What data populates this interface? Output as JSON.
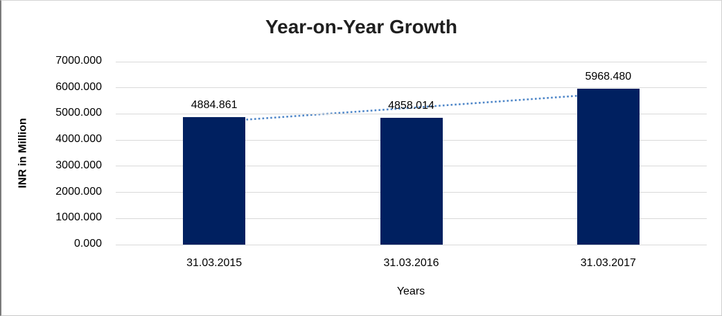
{
  "chart_data": {
    "type": "bar",
    "title": "Year-on-Year Growth",
    "xlabel": "Years",
    "ylabel": "INR in Million",
    "categories": [
      "31.03.2015",
      "31.03.2016",
      "31.03.2017"
    ],
    "values": [
      4884.861,
      4858.014,
      5968.48
    ],
    "data_labels": [
      "4884.861",
      "4858.014",
      "5968.480"
    ],
    "ylim": [
      0,
      7000
    ],
    "ytick_step": 1000,
    "ytick_labels": [
      "0.000",
      "1000.000",
      "2000.000",
      "3000.000",
      "4000.000",
      "5000.000",
      "6000.000",
      "7000.000"
    ],
    "grid": true,
    "legend": false,
    "bar_color": "#002060",
    "grid_color": "#d9d9d9",
    "trendline": {
      "type": "linear",
      "style": "dotted",
      "color": "#4e86c8"
    }
  }
}
